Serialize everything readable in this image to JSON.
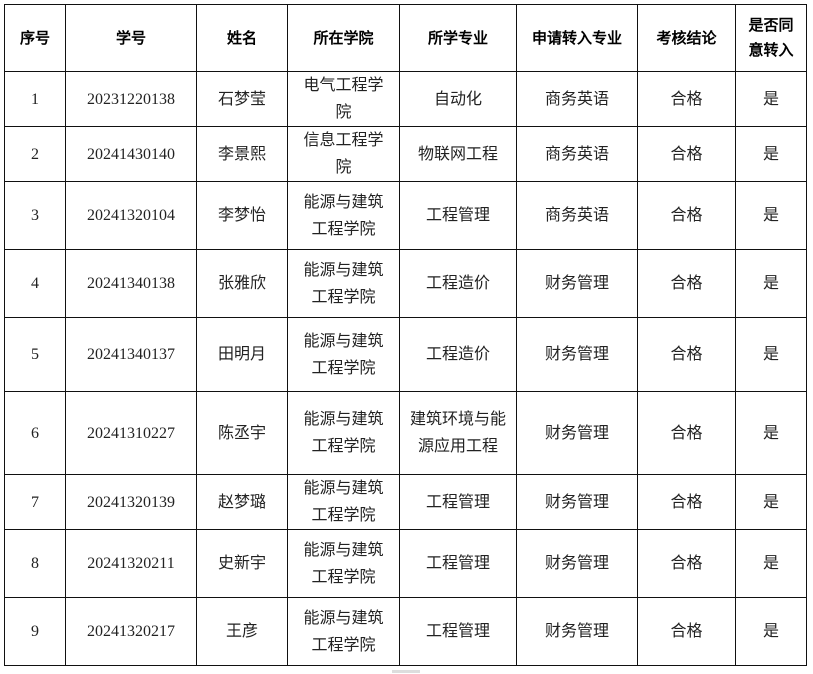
{
  "headers": [
    "序号",
    "学号",
    "姓名",
    "所在学院",
    "所学专业",
    "申请转入专业",
    "考核结论",
    "是否同意转入"
  ],
  "rows": [
    [
      "1",
      "20231220138",
      "石梦莹",
      "电气工程学院",
      "自动化",
      "商务英语",
      "合格",
      "是"
    ],
    [
      "2",
      "20241430140",
      "李景熙",
      "信息工程学院",
      "物联网工程",
      "商务英语",
      "合格",
      "是"
    ],
    [
      "3",
      "20241320104",
      "李梦怡",
      "能源与建筑工程学院",
      "工程管理",
      "商务英语",
      "合格",
      "是"
    ],
    [
      "4",
      "20241340138",
      "张雅欣",
      "能源与建筑工程学院",
      "工程造价",
      "财务管理",
      "合格",
      "是"
    ],
    [
      "5",
      "20241340137",
      "田明月",
      "能源与建筑工程学院",
      "工程造价",
      "财务管理",
      "合格",
      "是"
    ],
    [
      "6",
      "20241310227",
      "陈丞宇",
      "能源与建筑工程学院",
      "建筑环境与能源应用工程",
      "财务管理",
      "合格",
      "是"
    ],
    [
      "7",
      "20241320139",
      "赵梦璐",
      "能源与建筑工程学院",
      "工程管理",
      "财务管理",
      "合格",
      "是"
    ],
    [
      "8",
      "20241320211",
      "史新宇",
      "能源与建筑工程学院",
      "工程管理",
      "财务管理",
      "合格",
      "是"
    ],
    [
      "9",
      "20241320217",
      "王彦",
      "能源与建筑工程学院",
      "工程管理",
      "财务管理",
      "合格",
      "是"
    ]
  ]
}
